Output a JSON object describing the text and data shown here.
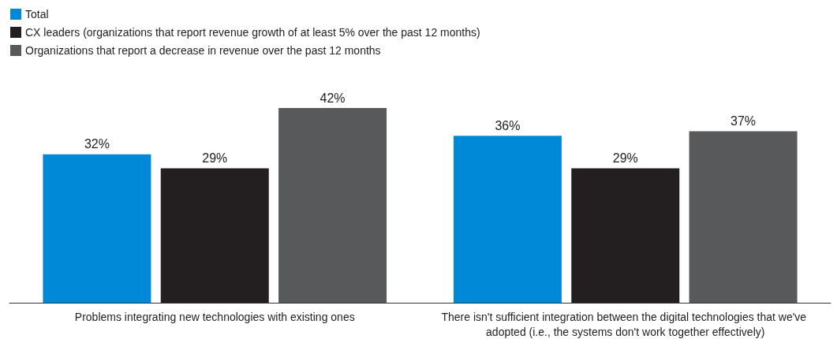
{
  "chart_data": {
    "type": "bar",
    "categories": [
      "Problems integrating new technologies with existing ones",
      "There isn't sufficient integration between the digital technologies that we've adopted (i.e., the systems don't work together effectively)"
    ],
    "series": [
      {
        "name": "Total",
        "color": "#0089d6",
        "values": [
          32,
          36
        ],
        "value_labels": [
          "32%",
          "36%"
        ]
      },
      {
        "name": "CX leaders (organizations that report revenue growth of at least 5% over the past 12 months)",
        "color": "#231f20",
        "values": [
          29,
          29
        ],
        "value_labels": [
          "29%",
          "29%"
        ]
      },
      {
        "name": "Organizations that report a decrease in revenue over the past 12 months",
        "color": "#58595b",
        "values": [
          42,
          37
        ],
        "value_labels": [
          "42%",
          "37%"
        ]
      }
    ],
    "legend": "top left"
  }
}
